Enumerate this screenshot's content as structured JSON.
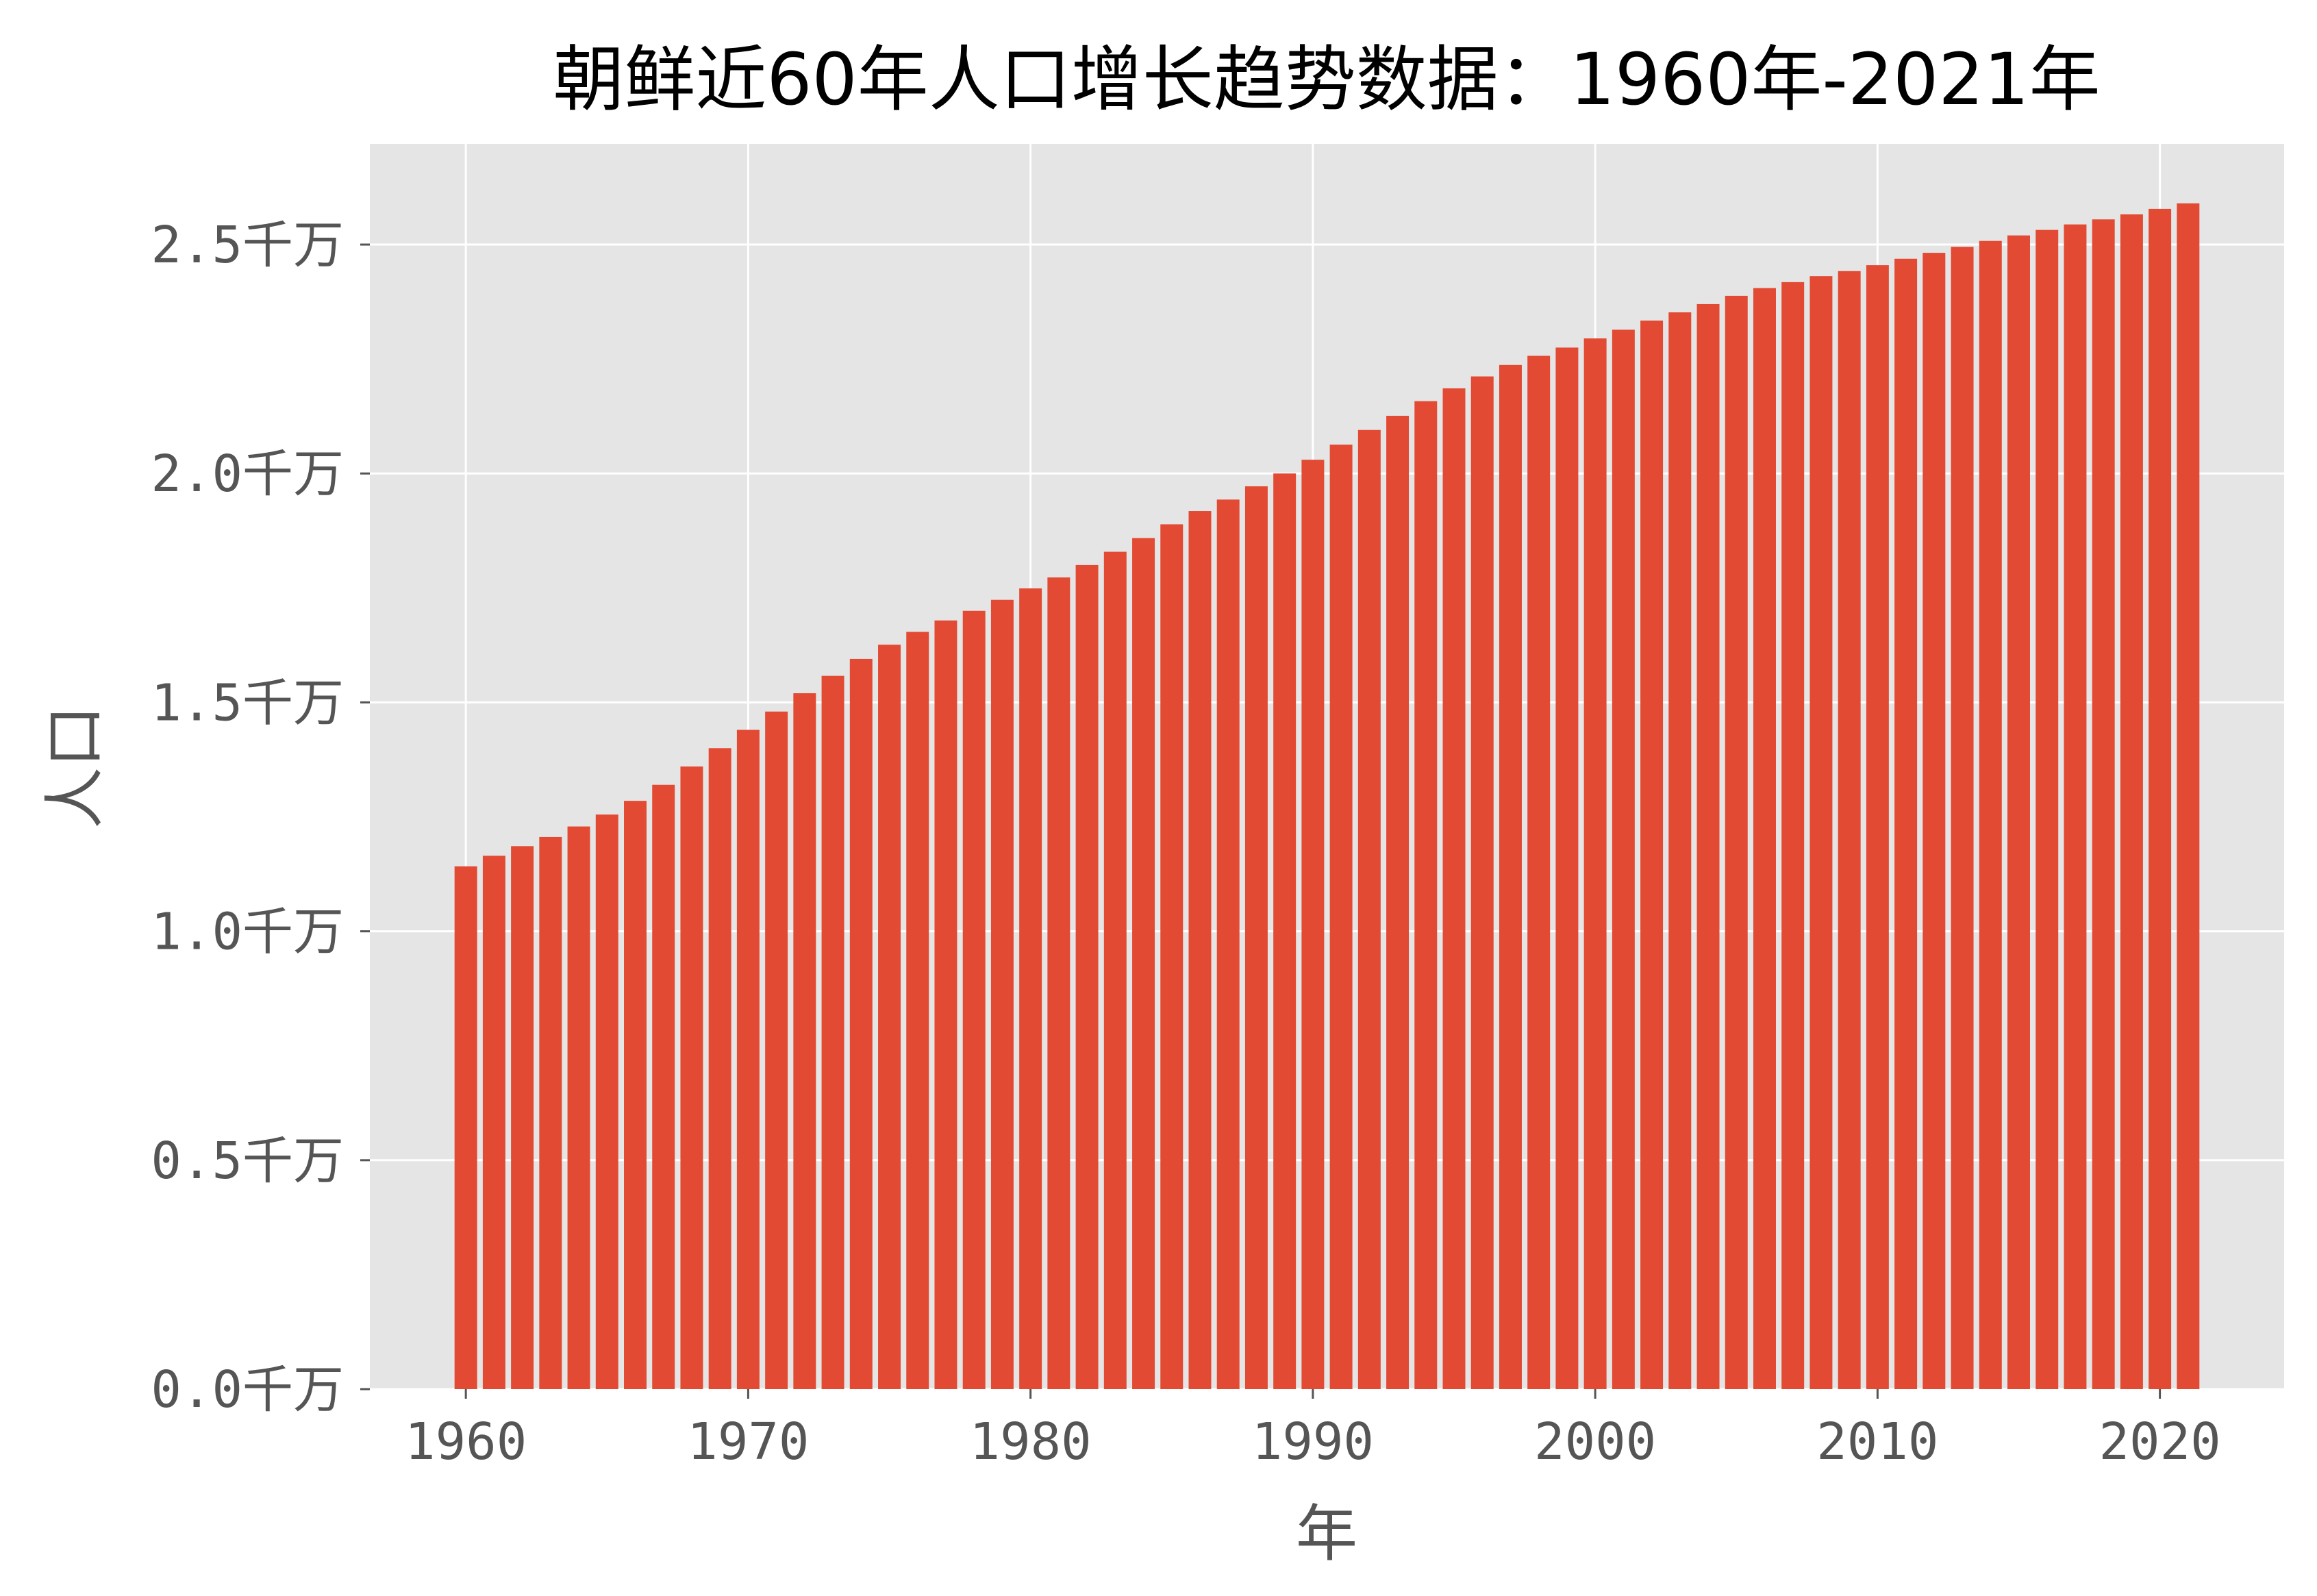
{
  "chart_data": {
    "type": "bar",
    "title": "朝鲜近60年人口增长趋势数据：1960年-2021年",
    "xlabel": "年",
    "ylabel": "人口",
    "bar_color": "#E24A33",
    "plot_background": "#E5E5E5",
    "grid": true,
    "xlim": [
      1956.6,
      2024.4
    ],
    "ylim": [
      0,
      2.72
    ],
    "x_ticks": [
      "1960",
      "1970",
      "1980",
      "1990",
      "2000",
      "2010",
      "2020"
    ],
    "y_ticks": [
      "0.0千万",
      "0.5千万",
      "1.0千万",
      "1.5千万",
      "2.0千万",
      "2.5千万"
    ],
    "y_unit": "千万",
    "x": [
      1960,
      1961,
      1962,
      1963,
      1964,
      1965,
      1966,
      1967,
      1968,
      1969,
      1970,
      1971,
      1972,
      1973,
      1974,
      1975,
      1976,
      1977,
      1978,
      1979,
      1980,
      1981,
      1982,
      1983,
      1984,
      1985,
      1986,
      1987,
      1988,
      1989,
      1990,
      1991,
      1992,
      1993,
      1994,
      1995,
      1996,
      1997,
      1998,
      1999,
      2000,
      2001,
      2002,
      2003,
      2004,
      2005,
      2006,
      2007,
      2008,
      2009,
      2010,
      2011,
      2012,
      2013,
      2014,
      2015,
      2016,
      2017,
      2018,
      2019,
      2020,
      2021
    ],
    "values": [
      1.142,
      1.165,
      1.186,
      1.206,
      1.229,
      1.255,
      1.285,
      1.32,
      1.36,
      1.4,
      1.44,
      1.48,
      1.52,
      1.558,
      1.595,
      1.626,
      1.654,
      1.679,
      1.7,
      1.724,
      1.749,
      1.773,
      1.8,
      1.829,
      1.859,
      1.889,
      1.918,
      1.943,
      1.972,
      2.0,
      2.03,
      2.063,
      2.095,
      2.126,
      2.158,
      2.186,
      2.212,
      2.237,
      2.257,
      2.275,
      2.295,
      2.314,
      2.334,
      2.352,
      2.37,
      2.388,
      2.405,
      2.418,
      2.431,
      2.442,
      2.455,
      2.469,
      2.482,
      2.495,
      2.508,
      2.52,
      2.532,
      2.544,
      2.555,
      2.566,
      2.578,
      2.59
    ]
  }
}
